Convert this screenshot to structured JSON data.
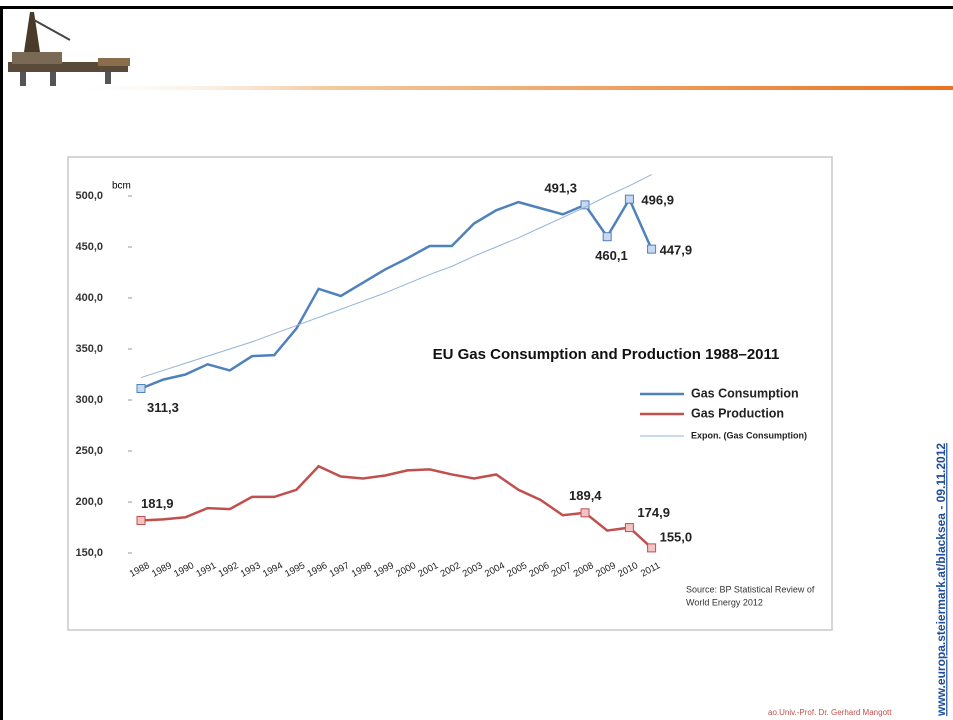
{
  "chart_data": {
    "type": "line",
    "title": "EU Gas Consumption and Production 1988–2011",
    "y_label": "bcm",
    "source": [
      "Source: BP Statistical Review of",
      "World Energy 2012"
    ],
    "categories": [
      "1988",
      "1989",
      "1990",
      "1991",
      "1992",
      "1993",
      "1994",
      "1995",
      "1996",
      "1997",
      "1998",
      "1999",
      "2000",
      "2001",
      "2002",
      "2003",
      "2004",
      "2005",
      "2006",
      "2007",
      "2008",
      "2009",
      "2010",
      "2011"
    ],
    "series": [
      {
        "name": "Gas Consumption",
        "color": "#4f81bd",
        "values": [
          311.3,
          320,
          325,
          335,
          329,
          343,
          344,
          370,
          409,
          402,
          415,
          428,
          439,
          451,
          451,
          473,
          486,
          494,
          488,
          482,
          491.3,
          460.1,
          496.9,
          447.9
        ],
        "value_labels": [
          "311,3",
          null,
          null,
          null,
          null,
          null,
          null,
          null,
          null,
          null,
          null,
          null,
          null,
          null,
          null,
          null,
          null,
          null,
          null,
          null,
          "491,3",
          "460,1",
          "496,9",
          "447,9"
        ]
      },
      {
        "name": "Gas Production",
        "color": "#c0504d",
        "values": [
          181.9,
          183,
          185,
          194,
          193,
          205,
          205,
          212,
          235,
          225,
          223,
          226,
          231,
          232,
          227,
          223,
          227,
          212,
          202,
          187,
          189.4,
          172,
          174.9,
          155.0
        ],
        "value_labels": [
          "181,9",
          null,
          null,
          null,
          null,
          null,
          null,
          null,
          null,
          null,
          null,
          null,
          null,
          null,
          null,
          null,
          null,
          null,
          null,
          null,
          "189,4",
          null,
          "174,9",
          "155,0"
        ]
      },
      {
        "name": "Expon. (Gas Consumption)",
        "color": "#95b3d7",
        "values": [
          322,
          329,
          336,
          343,
          350,
          357,
          365,
          373,
          381,
          389,
          397,
          405,
          414,
          423,
          431,
          441,
          450,
          459,
          469,
          479,
          489,
          500,
          510,
          521
        ]
      }
    ],
    "ylim": [
      150,
      525
    ],
    "yticks": [
      {
        "value": 150,
        "label": "150,0"
      },
      {
        "value": 200,
        "label": "200,0"
      },
      {
        "value": 250,
        "label": "250,0"
      },
      {
        "value": 300,
        "label": "300,0"
      },
      {
        "value": 350,
        "label": "350,0"
      },
      {
        "value": 400,
        "label": "400,0"
      },
      {
        "value": 450,
        "label": "450,0"
      },
      {
        "value": 500,
        "label": "500,0"
      }
    ],
    "grid": false,
    "legend": "right"
  },
  "slide": {
    "footer": "ao.Univ.-Prof. Dr. Gerhard Mangott",
    "side_text": "www.europa.steiermark.at/blacksea - 09.11.2012"
  }
}
